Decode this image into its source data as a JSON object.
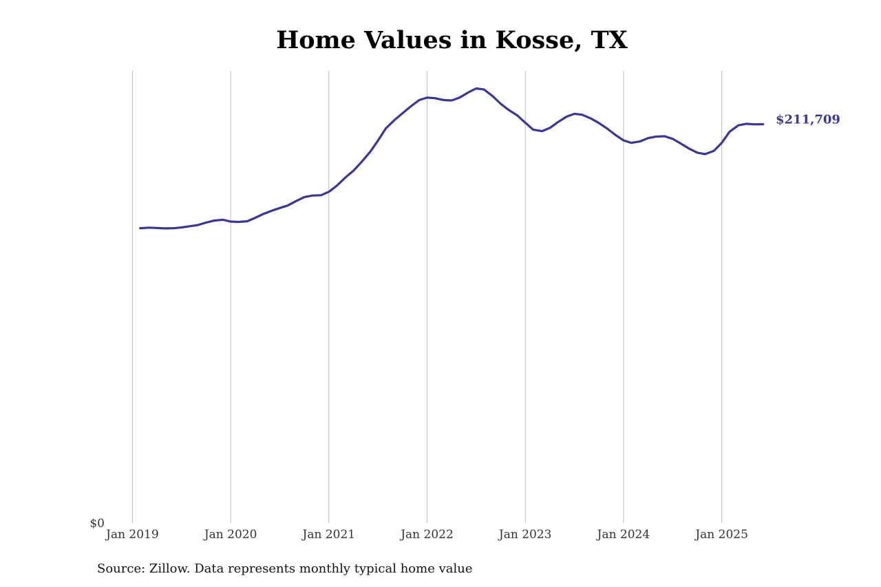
{
  "chart_data": {
    "type": "line",
    "title": "Home Values in Kosse, TX",
    "xlabel": "",
    "ylabel": "",
    "y_tick_labels": [
      {
        "value": 0,
        "label": "$0"
      }
    ],
    "x_ticks": [
      {
        "value": 2019.0,
        "label": "Jan 2019"
      },
      {
        "value": 2020.0,
        "label": "Jan 2020"
      },
      {
        "value": 2021.0,
        "label": "Jan 2021"
      },
      {
        "value": 2022.0,
        "label": "Jan 2022"
      },
      {
        "value": 2023.0,
        "label": "Jan 2023"
      },
      {
        "value": 2024.0,
        "label": "Jan 2024"
      },
      {
        "value": 2025.0,
        "label": "Jan 2025"
      }
    ],
    "xlim": [
      2018.92,
      2026.25
    ],
    "ylim": [
      0,
      240000
    ],
    "grid": {
      "vertical": true,
      "horizontal": false
    },
    "legend": "none",
    "line_color": "#3a3596",
    "end_label": "$211,709",
    "series": [
      {
        "x": [
          2019.08,
          2019.17,
          2019.25,
          2019.33,
          2019.42,
          2019.5,
          2019.58,
          2019.67,
          2019.75,
          2019.83,
          2019.92,
          2020.0,
          2020.08,
          2020.17,
          2020.25,
          2020.33,
          2020.42,
          2020.5,
          2020.58,
          2020.67,
          2020.75,
          2020.83,
          2020.92,
          2021.0,
          2021.08,
          2021.17,
          2021.25,
          2021.33,
          2021.42,
          2021.5,
          2021.58,
          2021.67,
          2021.75,
          2021.83,
          2021.92,
          2022.0,
          2022.08,
          2022.17,
          2022.25,
          2022.33,
          2022.42,
          2022.5,
          2022.58,
          2022.67,
          2022.75,
          2022.83,
          2022.92,
          2023.0,
          2023.08,
          2023.17,
          2023.25,
          2023.33,
          2023.42,
          2023.5,
          2023.58,
          2023.67,
          2023.75,
          2023.83,
          2023.92,
          2024.0,
          2024.08,
          2024.17,
          2024.25,
          2024.33,
          2024.42,
          2024.5,
          2024.58,
          2024.67,
          2024.75,
          2024.83,
          2024.92,
          2025.0,
          2025.08,
          2025.17,
          2025.25,
          2025.33,
          2025.42
        ],
        "values": [
          156500,
          156800,
          156600,
          156400,
          156500,
          156900,
          157500,
          158200,
          159500,
          160500,
          161000,
          160000,
          159800,
          160200,
          162000,
          164000,
          165800,
          167200,
          168500,
          171000,
          173000,
          173800,
          174000,
          175800,
          179000,
          183500,
          187000,
          191500,
          197000,
          203000,
          209500,
          214000,
          217500,
          221000,
          224500,
          225800,
          225500,
          224500,
          224300,
          225800,
          228600,
          230700,
          230100,
          226500,
          222500,
          219300,
          216300,
          212500,
          208800,
          208000,
          209700,
          212700,
          215700,
          217200,
          216700,
          214700,
          212300,
          209500,
          205900,
          203100,
          201800,
          202600,
          204300,
          205100,
          205300,
          203900,
          201500,
          198700,
          196600,
          195800,
          197500,
          201800,
          207700,
          211100,
          211900,
          211600,
          211700
        ]
      }
    ]
  },
  "source_note": "Source: Zillow. Data represents monthly typical home value"
}
